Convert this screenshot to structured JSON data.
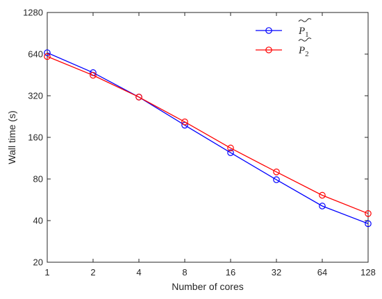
{
  "chart_data": {
    "type": "line",
    "x": [
      1,
      2,
      4,
      8,
      16,
      32,
      64,
      128
    ],
    "x_ticks": [
      "1",
      "2",
      "4",
      "8",
      "16",
      "32",
      "64",
      "128"
    ],
    "y_ticks": [
      "20",
      "40",
      "80",
      "160",
      "320",
      "640",
      "1280"
    ],
    "y_tick_values": [
      20,
      40,
      80,
      160,
      320,
      640,
      1280
    ],
    "xlabel": "Number of cores",
    "ylabel": "Wall time (s)",
    "xscale": "log2",
    "yscale": "log2",
    "xlim": [
      1,
      128
    ],
    "ylim": [
      20,
      1280
    ],
    "grid": false,
    "legend_position": "top-right",
    "series": [
      {
        "name": "P̃₁",
        "legend_base": "P",
        "legend_sub": "1",
        "color": "#0000ff",
        "marker": "circle",
        "values": [
          655,
          470,
          313,
          196,
          124,
          79,
          51,
          38
        ]
      },
      {
        "name": "P̃₂",
        "legend_base": "P",
        "legend_sub": "2",
        "color": "#ff0000",
        "marker": "circle",
        "values": [
          615,
          450,
          313,
          207,
          134,
          90,
          61,
          45
        ]
      }
    ]
  }
}
